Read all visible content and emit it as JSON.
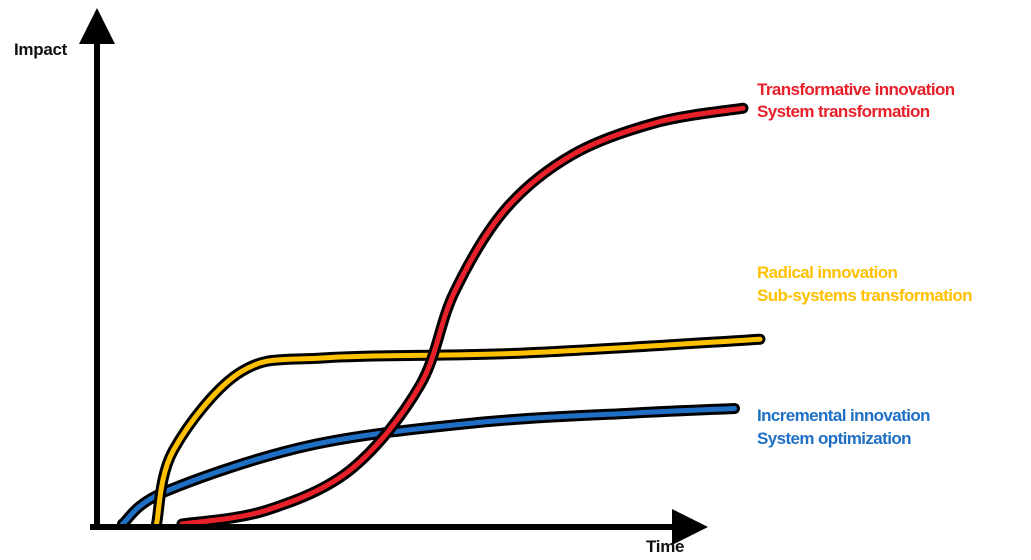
{
  "chart_data": {
    "type": "line",
    "title": "",
    "xlabel": "Time",
    "ylabel": "Impact",
    "grid": false,
    "legend_placement": "right",
    "series": [
      {
        "key": "transformative",
        "lines": [
          "Transformative innovation",
          "System transformation"
        ],
        "color": "#e8202a",
        "points": [
          [
            0.1,
            0.0
          ],
          [
            0.2,
            0.03
          ],
          [
            0.3,
            0.12
          ],
          [
            0.38,
            0.3
          ],
          [
            0.42,
            0.5
          ],
          [
            0.48,
            0.68
          ],
          [
            0.56,
            0.8
          ],
          [
            0.66,
            0.87
          ],
          [
            0.76,
            0.9
          ]
        ]
      },
      {
        "key": "radical",
        "lines": [
          "Radical innovation",
          "Sub-systems transformation"
        ],
        "color": "#ffc000",
        "points": [
          [
            0.07,
            0.0
          ],
          [
            0.09,
            0.16
          ],
          [
            0.17,
            0.33
          ],
          [
            0.27,
            0.36
          ],
          [
            0.5,
            0.37
          ],
          [
            0.78,
            0.4
          ]
        ]
      },
      {
        "key": "incremental",
        "lines": [
          "Incremental innovation",
          "System optimization"
        ],
        "color": "#1f6fc5",
        "points": [
          [
            0.03,
            0.0
          ],
          [
            0.08,
            0.07
          ],
          [
            0.25,
            0.17
          ],
          [
            0.45,
            0.22
          ],
          [
            0.63,
            0.24
          ],
          [
            0.75,
            0.25
          ]
        ]
      }
    ]
  }
}
